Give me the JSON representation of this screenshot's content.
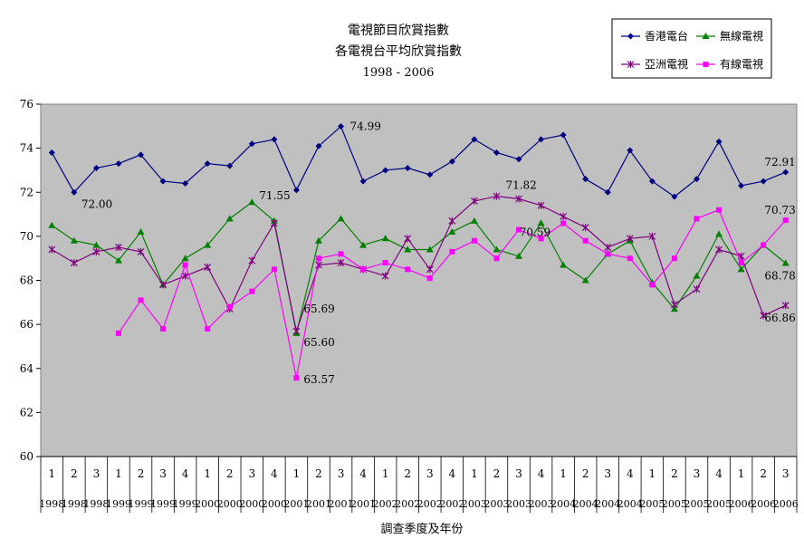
{
  "chart_data": {
    "type": "line",
    "title": "電視節目欣賞指數",
    "subtitle": "各電視台平均欣賞指數",
    "period": "1998 - 2006",
    "xlabel": "調查季度及年份",
    "ylim": [
      60,
      76
    ],
    "yticks": [
      60,
      62,
      64,
      66,
      68,
      70,
      72,
      74,
      76
    ],
    "x_quarters": [
      "1",
      "2",
      "3",
      "1",
      "2",
      "3",
      "4",
      "1",
      "2",
      "3",
      "4",
      "1",
      "2",
      "3",
      "4",
      "1",
      "2",
      "3",
      "4",
      "1",
      "2",
      "3",
      "4",
      "1",
      "2",
      "3",
      "4",
      "1",
      "2",
      "3",
      "4",
      "1",
      "2",
      "3"
    ],
    "x_years": [
      "1998",
      "1998",
      "1998",
      "1999",
      "1999",
      "1999",
      "1999",
      "2000",
      "2000",
      "2000",
      "2000",
      "2001",
      "2001",
      "2001",
      "2001",
      "2002",
      "2002",
      "2002",
      "2002",
      "2003",
      "2003",
      "2003",
      "2003",
      "2004",
      "2004",
      "2004",
      "2004",
      "2005",
      "2005",
      "2005",
      "2005",
      "2006",
      "2006",
      "2006"
    ],
    "series": [
      {
        "name": "香港電台",
        "color": "#000080",
        "marker": "diamond",
        "values": [
          73.8,
          72.0,
          73.1,
          73.3,
          73.7,
          72.5,
          72.4,
          73.3,
          73.2,
          74.2,
          74.4,
          72.1,
          74.1,
          74.99,
          72.5,
          73.0,
          73.1,
          72.8,
          73.4,
          74.4,
          73.8,
          73.5,
          74.4,
          74.6,
          72.6,
          72.0,
          73.9,
          72.5,
          71.8,
          72.6,
          74.3,
          72.3,
          72.5,
          72.91
        ]
      },
      {
        "name": "無線電視",
        "color": "#008000",
        "marker": "triangle",
        "values": [
          70.5,
          69.8,
          69.6,
          68.9,
          70.2,
          67.8,
          69.0,
          69.6,
          70.8,
          71.55,
          70.7,
          65.6,
          69.8,
          70.8,
          69.6,
          69.9,
          69.4,
          69.4,
          70.2,
          70.7,
          69.4,
          69.1,
          70.6,
          68.7,
          68.0,
          69.2,
          69.8,
          67.9,
          66.7,
          68.2,
          70.1,
          68.5,
          69.6,
          68.78
        ]
      },
      {
        "name": "亞洲電視",
        "color": "#800080",
        "marker": "star",
        "values": [
          69.4,
          68.8,
          69.3,
          69.5,
          69.3,
          67.8,
          68.2,
          68.6,
          66.7,
          68.9,
          70.6,
          65.69,
          68.7,
          68.8,
          68.5,
          68.2,
          69.9,
          68.5,
          70.7,
          71.6,
          71.82,
          71.7,
          71.4,
          70.9,
          70.4,
          69.5,
          69.9,
          70.0,
          66.9,
          67.6,
          69.4,
          69.1,
          66.4,
          66.86
        ]
      },
      {
        "name": "有線電視",
        "color": "#ff00ff",
        "marker": "square",
        "values": [
          null,
          null,
          null,
          65.6,
          67.1,
          65.8,
          68.7,
          65.8,
          66.8,
          67.5,
          68.5,
          63.57,
          69.0,
          69.2,
          68.5,
          68.8,
          68.5,
          68.1,
          69.3,
          69.8,
          69.0,
          70.3,
          69.9,
          70.59,
          69.8,
          69.2,
          69.0,
          67.8,
          69.0,
          70.8,
          71.2,
          68.8,
          69.6,
          70.73
        ]
      }
    ],
    "annotations": [
      {
        "text": "72.00",
        "series": 0,
        "index": 1
      },
      {
        "text": "74.99",
        "series": 0,
        "index": 13
      },
      {
        "text": "72.91",
        "series": 0,
        "index": 33
      },
      {
        "text": "71.55",
        "series": 1,
        "index": 9
      },
      {
        "text": "65.60",
        "series": 1,
        "index": 11
      },
      {
        "text": "68.78",
        "series": 1,
        "index": 33
      },
      {
        "text": "65.69",
        "series": 2,
        "index": 11
      },
      {
        "text": "71.82",
        "series": 2,
        "index": 20
      },
      {
        "text": "66.86",
        "series": 2,
        "index": 33
      },
      {
        "text": "63.57",
        "series": 3,
        "index": 11
      },
      {
        "text": "70.59",
        "series": 3,
        "index": 23
      },
      {
        "text": "70.73",
        "series": 3,
        "index": 33
      }
    ],
    "legend_position": "top-right",
    "grid": false
  }
}
